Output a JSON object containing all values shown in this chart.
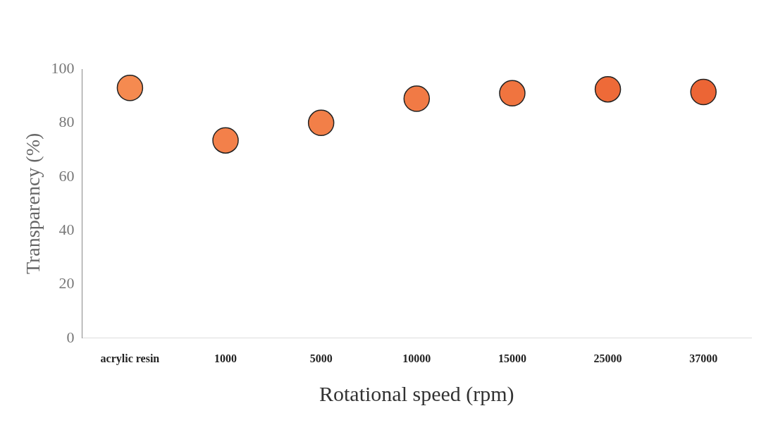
{
  "chart_data": {
    "type": "scatter",
    "xlabel": "Rotational speed (rpm)",
    "ylabel": "Transparency (%)",
    "categories": [
      "acrylic resin",
      "1000",
      "5000",
      "10000",
      "15000",
      "25000",
      "37000"
    ],
    "values": [
      93,
      73.5,
      80,
      89,
      91,
      92.5,
      91.5
    ],
    "colors": [
      "#f58a50",
      "#f3804a",
      "#f27f48",
      "#f17a45",
      "#f0743f",
      "#ee6a38",
      "#ec6535"
    ],
    "ylim": [
      0,
      100
    ],
    "yticks": [
      0,
      20,
      40,
      60,
      80,
      100
    ],
    "grid": false,
    "legend": false,
    "marker": "circle"
  }
}
